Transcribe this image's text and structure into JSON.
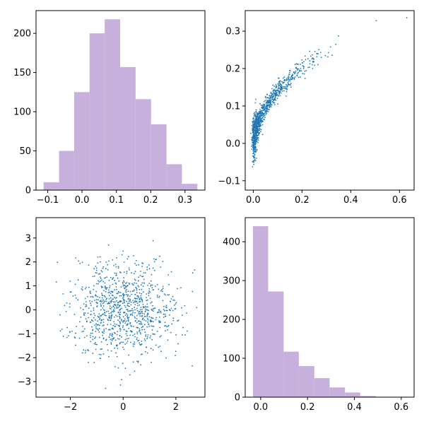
{
  "colors": {
    "hist": "#c8b0dc",
    "scatter": "#1f77b4",
    "axis": "#000000"
  },
  "chart_data": [
    {
      "type": "bar",
      "kind": "histogram",
      "position": "top-left",
      "bin_edges": [
        -0.112,
        -0.067,
        -0.023,
        0.022,
        0.066,
        0.111,
        0.156,
        0.201,
        0.246,
        0.291,
        0.336
      ],
      "values": [
        10,
        50,
        125,
        200,
        218,
        157,
        116,
        84,
        33,
        8
      ],
      "xlim": [
        -0.134,
        0.358
      ],
      "ylim": [
        0,
        229
      ],
      "xticks": [
        -0.1,
        0.0,
        0.1,
        0.2,
        0.3
      ],
      "xtick_labels": [
        "−0.1",
        "0.0",
        "0.1",
        "0.2",
        "0.3"
      ],
      "yticks": [
        0,
        50,
        100,
        150,
        200
      ],
      "ytick_labels": [
        "0",
        "50",
        "100",
        "150",
        "200"
      ]
    },
    {
      "type": "scatter",
      "position": "top-right",
      "relation": "y ≈ sqrt(x)·0.52 − 0.02 + noise, x skewed toward 0",
      "n_points": 1000,
      "xlim": [
        -0.033,
        0.66
      ],
      "ylim": [
        -0.125,
        0.355
      ],
      "xticks": [
        0.0,
        0.2,
        0.4,
        0.6
      ],
      "xtick_labels": [
        "0.0",
        "0.2",
        "0.4",
        "0.6"
      ],
      "yticks": [
        -0.1,
        0.0,
        0.1,
        0.2,
        0.3
      ],
      "ytick_labels": [
        "−0.1",
        "0.0",
        "0.1",
        "0.2",
        "0.3"
      ],
      "outliers": [
        {
          "x": 0.505,
          "y": 0.328
        },
        {
          "x": 0.63,
          "y": 0.336
        }
      ]
    },
    {
      "type": "scatter",
      "position": "bottom-left",
      "relation": "x, y ~ standard normal",
      "n_points": 1000,
      "xlim": [
        -3.3,
        3.1
      ],
      "ylim": [
        -3.65,
        3.85
      ],
      "xticks": [
        -2,
        0,
        2
      ],
      "xtick_labels": [
        "−2",
        "0",
        "2"
      ],
      "yticks": [
        -3,
        -2,
        -1,
        0,
        1,
        2,
        3
      ],
      "ytick_labels": [
        "−3",
        "−2",
        "−1",
        "0",
        "1",
        "2",
        "3"
      ]
    },
    {
      "type": "bar",
      "kind": "histogram",
      "position": "bottom-right",
      "bin_edges": [
        -0.033,
        0.032,
        0.098,
        0.163,
        0.229,
        0.294,
        0.36,
        0.425,
        0.491,
        0.556,
        0.622
      ],
      "values": [
        440,
        272,
        117,
        80,
        49,
        25,
        12,
        3,
        1,
        1
      ],
      "xlim": [
        -0.066,
        0.655
      ],
      "ylim": [
        0,
        462
      ],
      "xticks": [
        0.0,
        0.2,
        0.4,
        0.6
      ],
      "xtick_labels": [
        "0.0",
        "0.2",
        "0.4",
        "0.6"
      ],
      "yticks": [
        0,
        100,
        200,
        300,
        400
      ],
      "ytick_labels": [
        "0",
        "100",
        "200",
        "300",
        "400"
      ]
    }
  ]
}
